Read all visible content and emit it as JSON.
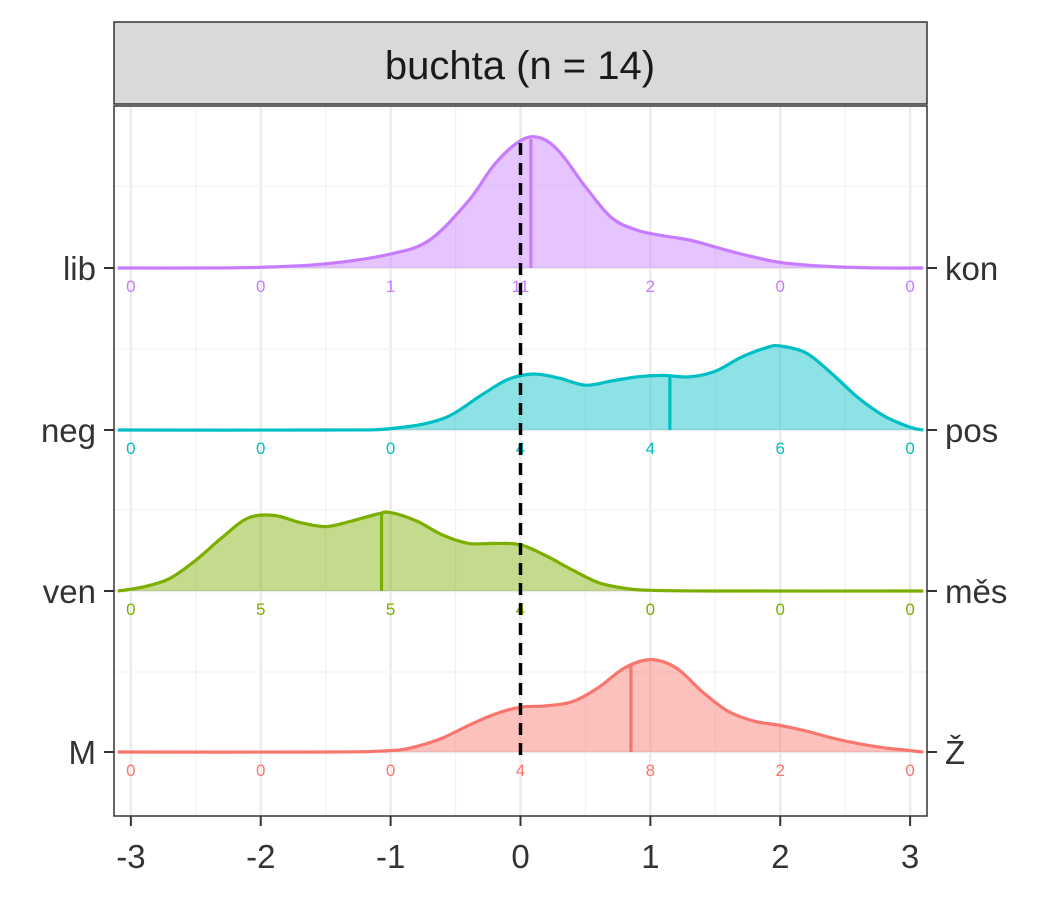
{
  "chart_data": {
    "type": "area",
    "title": "buchta (n = 14)",
    "xlabel": "",
    "ylabel": "",
    "xlim": [
      -3.13,
      3.13
    ],
    "x_ticks": [
      "-3",
      "-2",
      "-1",
      "0",
      "1",
      "2",
      "3"
    ],
    "x_tick_values": [
      -3,
      -2,
      -1,
      0,
      1,
      2,
      3
    ],
    "reference_line_x": 0,
    "grid": true,
    "count_positions": [
      -3,
      -2,
      -1,
      0,
      1,
      2,
      3
    ],
    "rows": [
      {
        "left_label": "lib",
        "right_label": "kon",
        "color": "#C77CFF",
        "mean": 0.08,
        "counts": [
          "0",
          "0",
          "1",
          "11",
          "2",
          "0",
          "0"
        ],
        "density": [
          [
            -3.1,
            0
          ],
          [
            -2.5,
            0
          ],
          [
            -2.0,
            0.005
          ],
          [
            -1.5,
            0.03
          ],
          [
            -1.0,
            0.1
          ],
          [
            -0.7,
            0.2
          ],
          [
            -0.4,
            0.48
          ],
          [
            -0.2,
            0.74
          ],
          [
            0,
            0.91
          ],
          [
            0.15,
            0.93
          ],
          [
            0.3,
            0.83
          ],
          [
            0.5,
            0.58
          ],
          [
            0.7,
            0.36
          ],
          [
            0.9,
            0.27
          ],
          [
            1.1,
            0.23
          ],
          [
            1.3,
            0.2
          ],
          [
            1.5,
            0.15
          ],
          [
            1.7,
            0.1
          ],
          [
            2.0,
            0.04
          ],
          [
            2.4,
            0.01
          ],
          [
            2.8,
            0
          ],
          [
            3.1,
            0
          ]
        ]
      },
      {
        "left_label": "neg",
        "right_label": "pos",
        "color": "#00BFC4",
        "mean": 1.15,
        "counts": [
          "0",
          "0",
          "0",
          "4",
          "4",
          "6",
          "0"
        ],
        "density": [
          [
            -3.1,
            0
          ],
          [
            -1.5,
            0
          ],
          [
            -1.0,
            0.01
          ],
          [
            -0.6,
            0.08
          ],
          [
            -0.3,
            0.25
          ],
          [
            -0.1,
            0.36
          ],
          [
            0.1,
            0.4
          ],
          [
            0.3,
            0.37
          ],
          [
            0.5,
            0.32
          ],
          [
            0.7,
            0.35
          ],
          [
            0.9,
            0.38
          ],
          [
            1.1,
            0.39
          ],
          [
            1.3,
            0.38
          ],
          [
            1.5,
            0.42
          ],
          [
            1.7,
            0.52
          ],
          [
            1.9,
            0.59
          ],
          [
            2.0,
            0.6
          ],
          [
            2.2,
            0.55
          ],
          [
            2.4,
            0.4
          ],
          [
            2.6,
            0.23
          ],
          [
            2.8,
            0.1
          ],
          [
            3.0,
            0.02
          ],
          [
            3.1,
            0
          ]
        ]
      },
      {
        "left_label": "ven",
        "right_label": "měs",
        "color": "#7CAE00",
        "mean": -1.07,
        "counts": [
          "0",
          "5",
          "5",
          "4",
          "0",
          "0",
          "0"
        ],
        "density": [
          [
            -3.1,
            0
          ],
          [
            -2.9,
            0.03
          ],
          [
            -2.7,
            0.09
          ],
          [
            -2.5,
            0.22
          ],
          [
            -2.3,
            0.38
          ],
          [
            -2.1,
            0.52
          ],
          [
            -1.9,
            0.54
          ],
          [
            -1.7,
            0.49
          ],
          [
            -1.5,
            0.46
          ],
          [
            -1.3,
            0.5
          ],
          [
            -1.1,
            0.55
          ],
          [
            -1.0,
            0.56
          ],
          [
            -0.8,
            0.5
          ],
          [
            -0.6,
            0.4
          ],
          [
            -0.4,
            0.34
          ],
          [
            -0.2,
            0.34
          ],
          [
            0,
            0.33
          ],
          [
            0.2,
            0.25
          ],
          [
            0.4,
            0.15
          ],
          [
            0.6,
            0.06
          ],
          [
            0.8,
            0.02
          ],
          [
            1.0,
            0.005
          ],
          [
            1.5,
            0
          ],
          [
            3.1,
            0
          ]
        ]
      },
      {
        "left_label": "M",
        "right_label": "Ž",
        "color": "#F8766D",
        "mean": 0.85,
        "counts": [
          "0",
          "0",
          "0",
          "4",
          "8",
          "2",
          "0"
        ],
        "density": [
          [
            -3.1,
            0
          ],
          [
            -1.5,
            0
          ],
          [
            -1.0,
            0.01
          ],
          [
            -0.8,
            0.04
          ],
          [
            -0.6,
            0.1
          ],
          [
            -0.4,
            0.19
          ],
          [
            -0.2,
            0.27
          ],
          [
            0,
            0.32
          ],
          [
            0.2,
            0.33
          ],
          [
            0.4,
            0.36
          ],
          [
            0.6,
            0.46
          ],
          [
            0.8,
            0.6
          ],
          [
            1.0,
            0.66
          ],
          [
            1.2,
            0.6
          ],
          [
            1.4,
            0.43
          ],
          [
            1.6,
            0.29
          ],
          [
            1.8,
            0.22
          ],
          [
            2.0,
            0.19
          ],
          [
            2.2,
            0.15
          ],
          [
            2.4,
            0.1
          ],
          [
            2.6,
            0.06
          ],
          [
            2.8,
            0.03
          ],
          [
            3.0,
            0.01
          ],
          [
            3.1,
            0
          ]
        ]
      }
    ]
  }
}
